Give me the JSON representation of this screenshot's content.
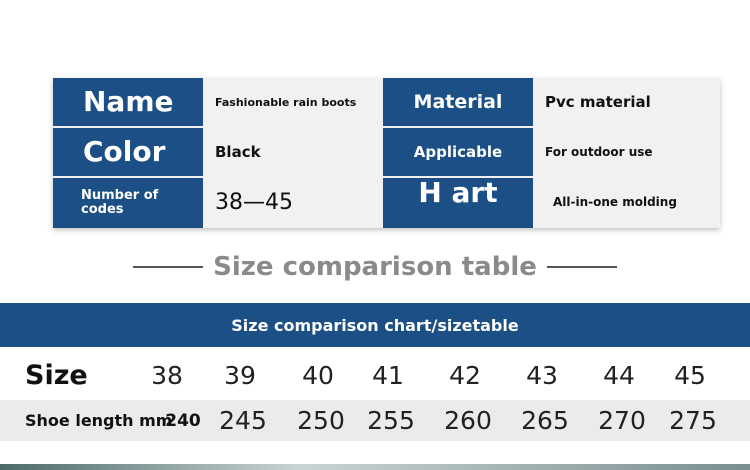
{
  "info": {
    "left": [
      {
        "label": "Name",
        "value": "Fashionable rain boots"
      },
      {
        "label": "Color",
        "value": "Black"
      },
      {
        "label": "Number of codes",
        "value": "38—45"
      }
    ],
    "right": [
      {
        "label": "Material",
        "value": "Pvc material"
      },
      {
        "label": "Applicable",
        "value": "For outdoor use"
      },
      {
        "label": "H art",
        "value": "All-in-one molding"
      }
    ]
  },
  "size_table": {
    "title": "Size comparison table",
    "header": "Size comparison chart/sizetable",
    "rows": [
      {
        "label": "Size",
        "values": [
          38,
          39,
          40,
          41,
          42,
          43,
          44,
          45
        ]
      },
      {
        "label": "Shoe length mm",
        "values": [
          240,
          245,
          250,
          255,
          260,
          265,
          270,
          275
        ]
      }
    ]
  }
}
